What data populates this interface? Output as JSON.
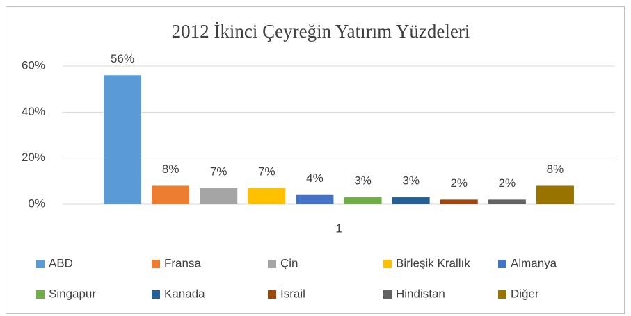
{
  "chart_data": {
    "type": "bar",
    "title": "2012 İkinci Çeyreğin Yatırım Yüzdeleri",
    "categories": [
      "1"
    ],
    "series": [
      {
        "name": "ABD",
        "color": "#5b9bd5",
        "values": [
          56
        ],
        "value_labels": [
          "56%"
        ]
      },
      {
        "name": "Fransa",
        "color": "#ed7d31",
        "values": [
          8
        ],
        "value_labels": [
          "8%"
        ]
      },
      {
        "name": "Çin",
        "color": "#a5a5a5",
        "values": [
          7
        ],
        "value_labels": [
          "7%"
        ]
      },
      {
        "name": "Birleşik Krallık",
        "color": "#ffc000",
        "values": [
          7
        ],
        "value_labels": [
          "7%"
        ]
      },
      {
        "name": "Almanya",
        "color": "#4472c4",
        "values": [
          4
        ],
        "value_labels": [
          "4%"
        ]
      },
      {
        "name": "Singapur",
        "color": "#70ad47",
        "values": [
          3
        ],
        "value_labels": [
          "3%"
        ]
      },
      {
        "name": "Kanada",
        "color": "#255e91",
        "values": [
          3
        ],
        "value_labels": [
          "3%"
        ]
      },
      {
        "name": "İsrail",
        "color": "#9e480e",
        "values": [
          2
        ],
        "value_labels": [
          "2%"
        ]
      },
      {
        "name": "Hindistan",
        "color": "#636363",
        "values": [
          2
        ],
        "value_labels": [
          "2%"
        ]
      },
      {
        "name": "Diğer",
        "color": "#997300",
        "values": [
          8
        ],
        "value_labels": [
          "8%"
        ]
      }
    ],
    "ylim": [
      0,
      60
    ],
    "yticks": [
      {
        "value": 0,
        "label": "0%"
      },
      {
        "value": 20,
        "label": "20%"
      },
      {
        "value": 40,
        "label": "40%"
      },
      {
        "value": 60,
        "label": "60%"
      }
    ],
    "grid": true,
    "legend": "bottom"
  }
}
